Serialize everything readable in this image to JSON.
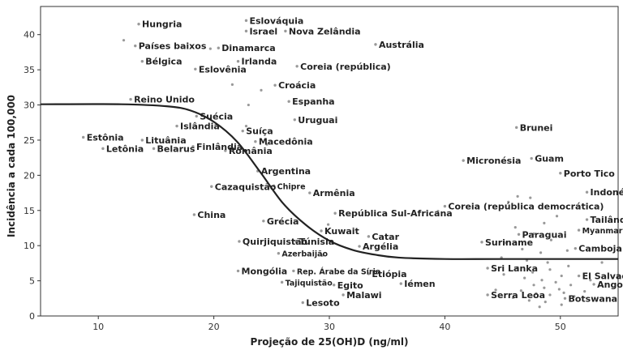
{
  "chart_data": {
    "type": "scatter",
    "title": "",
    "xlabel": "Projeção de 25(OH)D (ng/ml)",
    "ylabel": "Incidência a cada 100,000",
    "xlim": [
      5,
      55
    ],
    "ylim": [
      0,
      44
    ],
    "xticks": [
      10,
      20,
      30,
      40,
      50
    ],
    "yticks": [
      0,
      5,
      10,
      15,
      20,
      25,
      30,
      35,
      40
    ],
    "grid": false,
    "colors": {
      "point": "#999999",
      "curve": "#222222",
      "frame": "#333333"
    },
    "curve": {
      "name": "",
      "points": [
        [
          5,
          30.1
        ],
        [
          12,
          30.1
        ],
        [
          16,
          29.8
        ],
        [
          18,
          29.2
        ],
        [
          20,
          27.6
        ],
        [
          22,
          24.8
        ],
        [
          24,
          20.5
        ],
        [
          26,
          16.0
        ],
        [
          28,
          12.9
        ],
        [
          30,
          10.7
        ],
        [
          32,
          9.4
        ],
        [
          34,
          8.7
        ],
        [
          36,
          8.3
        ],
        [
          40,
          8.1
        ],
        [
          45,
          8.1
        ],
        [
          55,
          8.1
        ]
      ]
    },
    "labeled_points": [
      {
        "label": "Hungria",
        "x": 13.5,
        "y": 41.5
      },
      {
        "label": "Eslováquia",
        "x": 22.8,
        "y": 42.0
      },
      {
        "label": "Israel",
        "x": 22.8,
        "y": 40.5
      },
      {
        "label": "Nova Zelândia",
        "x": 26.2,
        "y": 40.5
      },
      {
        "label": "Austrália",
        "x": 34.0,
        "y": 38.6
      },
      {
        "label": "Países baixos",
        "x": 13.2,
        "y": 38.4
      },
      {
        "label": "Dinamarca",
        "x": 20.4,
        "y": 38.1
      },
      {
        "label": "Bélgica",
        "x": 13.8,
        "y": 36.2
      },
      {
        "label": "Irlanda",
        "x": 22.1,
        "y": 36.2
      },
      {
        "label": "Eslovênia",
        "x": 18.4,
        "y": 35.1
      },
      {
        "label": "Coreia (república)",
        "x": 27.2,
        "y": 35.5
      },
      {
        "label": "Croácia",
        "x": 25.3,
        "y": 32.8
      },
      {
        "label": "Espanha",
        "x": 26.5,
        "y": 30.5
      },
      {
        "label": "Reino Unido",
        "x": 12.8,
        "y": 30.8
      },
      {
        "label": "Suécia",
        "x": 18.5,
        "y": 28.4
      },
      {
        "label": "Uruguai",
        "x": 27.0,
        "y": 27.9
      },
      {
        "label": "Brunei",
        "x": 46.2,
        "y": 26.8
      },
      {
        "label": "Islândia",
        "x": 16.8,
        "y": 27.0
      },
      {
        "label": "Suíça",
        "x": 22.5,
        "y": 26.3
      },
      {
        "label": "Estônia",
        "x": 8.7,
        "y": 25.4
      },
      {
        "label": "Lituânia",
        "x": 13.8,
        "y": 25.0
      },
      {
        "label": "Macedônia",
        "x": 23.6,
        "y": 24.8
      },
      {
        "label": "Letônia",
        "x": 10.4,
        "y": 23.8
      },
      {
        "label": "Belarus",
        "x": 14.8,
        "y": 23.8
      },
      {
        "label": "Finlândia",
        "x": 18.2,
        "y": 24.1
      },
      {
        "label": "România",
        "x": 21.0,
        "y": 23.5
      },
      {
        "label": "Micronésia",
        "x": 41.6,
        "y": 22.1
      },
      {
        "label": "Guam",
        "x": 47.5,
        "y": 22.4
      },
      {
        "label": "Argentina",
        "x": 23.8,
        "y": 20.6
      },
      {
        "label": "Porto Tico",
        "x": 50.0,
        "y": 20.3
      },
      {
        "label": "Cazaquistão",
        "x": 19.8,
        "y": 18.4
      },
      {
        "label": "Chipre",
        "x": 25.2,
        "y": 18.5
      },
      {
        "label": "Indonésia",
        "x": 52.3,
        "y": 17.6
      },
      {
        "label": "Armênia",
        "x": 28.3,
        "y": 17.5
      },
      {
        "label": "Coreia (república democrática)",
        "x": 40.0,
        "y": 15.6
      },
      {
        "label": "República Sul-Africana",
        "x": 30.5,
        "y": 14.6
      },
      {
        "label": "China",
        "x": 18.3,
        "y": 14.4
      },
      {
        "label": "Grécia",
        "x": 24.3,
        "y": 13.5
      },
      {
        "label": "Tailândia",
        "x": 52.3,
        "y": 13.7
      },
      {
        "label": "Myanmar",
        "x": 51.6,
        "y": 12.2
      },
      {
        "label": "Kuwait",
        "x": 29.3,
        "y": 12.1
      },
      {
        "label": "Paraguai",
        "x": 46.4,
        "y": 11.6
      },
      {
        "label": "Catar",
        "x": 33.4,
        "y": 11.3
      },
      {
        "label": "Quirjiquistão",
        "x": 22.2,
        "y": 10.6
      },
      {
        "label": "Túnisia",
        "x": 27.1,
        "y": 10.6
      },
      {
        "label": "Suriname",
        "x": 43.2,
        "y": 10.5
      },
      {
        "label": "Argélia",
        "x": 32.6,
        "y": 9.9
      },
      {
        "label": "Camboja",
        "x": 51.3,
        "y": 9.6
      },
      {
        "label": "Azerbaijão",
        "x": 25.6,
        "y": 8.9
      },
      {
        "label": "Sri Lanka",
        "x": 43.7,
        "y": 6.8
      },
      {
        "label": "Mongólia",
        "x": 22.1,
        "y": 6.4
      },
      {
        "label": "Rep. Árabe da Síria",
        "x": 26.9,
        "y": 6.4
      },
      {
        "label": "Etiópia",
        "x": 33.4,
        "y": 6.0
      },
      {
        "label": "El Salvador",
        "x": 51.6,
        "y": 5.7
      },
      {
        "label": "Tajiquistão",
        "x": 25.9,
        "y": 4.8
      },
      {
        "label": "Egito",
        "x": 30.4,
        "y": 4.4
      },
      {
        "label": "Iémen",
        "x": 36.2,
        "y": 4.6
      },
      {
        "label": "Angola",
        "x": 52.9,
        "y": 4.5
      },
      {
        "label": "Malawi",
        "x": 31.2,
        "y": 3.0
      },
      {
        "label": "Serra Leoa",
        "x": 43.7,
        "y": 3.0
      },
      {
        "label": "Botswana",
        "x": 50.4,
        "y": 2.5
      },
      {
        "label": "Lesoto",
        "x": 27.7,
        "y": 1.9
      }
    ],
    "unlabeled_points": [
      {
        "x": 12.2,
        "y": 39.2
      },
      {
        "x": 19.7,
        "y": 38.0
      },
      {
        "x": 21.6,
        "y": 32.9
      },
      {
        "x": 23.0,
        "y": 30.0
      },
      {
        "x": 24.1,
        "y": 32.1
      },
      {
        "x": 22.8,
        "y": 27.0
      },
      {
        "x": 24.6,
        "y": 24.4
      },
      {
        "x": 33.4,
        "y": 11.3
      },
      {
        "x": 45.5,
        "y": 16.2
      },
      {
        "x": 46.3,
        "y": 17.0
      },
      {
        "x": 47.4,
        "y": 16.8
      },
      {
        "x": 49.7,
        "y": 14.2
      },
      {
        "x": 48.6,
        "y": 13.2
      },
      {
        "x": 46.1,
        "y": 12.6
      },
      {
        "x": 47.7,
        "y": 11.7
      },
      {
        "x": 49.2,
        "y": 10.8
      },
      {
        "x": 45.3,
        "y": 10.4
      },
      {
        "x": 46.7,
        "y": 9.5
      },
      {
        "x": 48.3,
        "y": 9.0
      },
      {
        "x": 50.6,
        "y": 9.3
      },
      {
        "x": 44.9,
        "y": 8.3
      },
      {
        "x": 47.1,
        "y": 7.9
      },
      {
        "x": 48.9,
        "y": 7.6
      },
      {
        "x": 50.7,
        "y": 7.1
      },
      {
        "x": 46.3,
        "y": 6.9
      },
      {
        "x": 47.6,
        "y": 6.2
      },
      {
        "x": 49.1,
        "y": 6.6
      },
      {
        "x": 50.1,
        "y": 5.7
      },
      {
        "x": 45.1,
        "y": 5.9
      },
      {
        "x": 46.9,
        "y": 5.4
      },
      {
        "x": 48.4,
        "y": 5.1
      },
      {
        "x": 49.6,
        "y": 4.8
      },
      {
        "x": 50.9,
        "y": 4.4
      },
      {
        "x": 47.7,
        "y": 4.4
      },
      {
        "x": 48.6,
        "y": 4.0
      },
      {
        "x": 49.9,
        "y": 3.8
      },
      {
        "x": 46.6,
        "y": 3.6
      },
      {
        "x": 47.9,
        "y": 3.2
      },
      {
        "x": 49.1,
        "y": 3.0
      },
      {
        "x": 50.3,
        "y": 3.3
      },
      {
        "x": 45.9,
        "y": 2.6
      },
      {
        "x": 47.3,
        "y": 2.2
      },
      {
        "x": 48.7,
        "y": 2.0
      },
      {
        "x": 50.1,
        "y": 1.6
      },
      {
        "x": 51.2,
        "y": 2.8
      },
      {
        "x": 52.1,
        "y": 3.5
      },
      {
        "x": 52.6,
        "y": 5.1
      },
      {
        "x": 48.2,
        "y": 1.3
      },
      {
        "x": 44.4,
        "y": 3.7
      },
      {
        "x": 53.6,
        "y": 7.6
      },
      {
        "x": 39.4,
        "y": 14.9
      },
      {
        "x": 29.9,
        "y": 13.0
      },
      {
        "x": 29.4,
        "y": 8.6
      }
    ]
  }
}
